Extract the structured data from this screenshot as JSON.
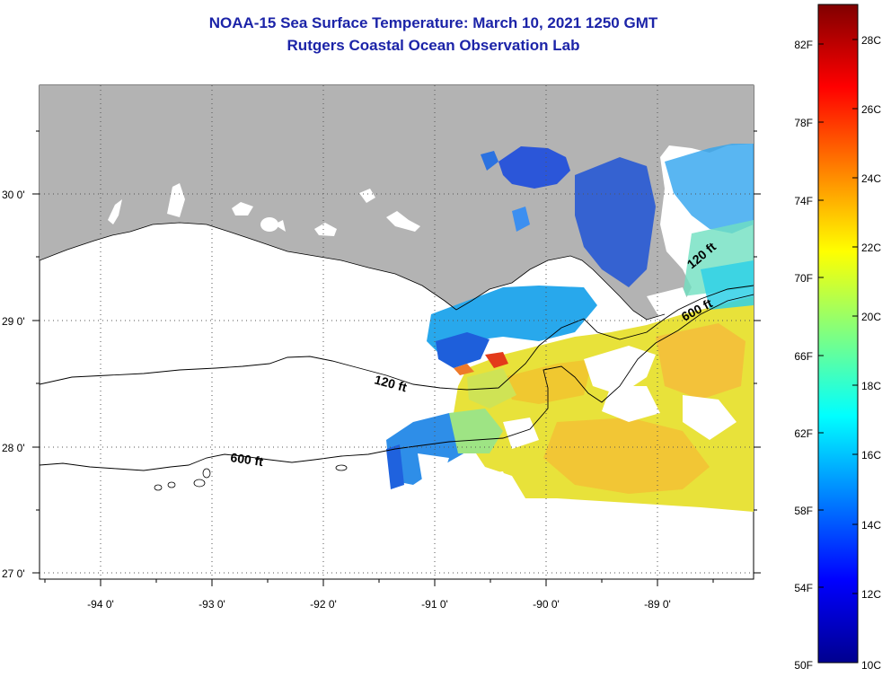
{
  "header": {
    "title": "NOAA-15 Sea Surface Temperature:  March 10, 2021 1250 GMT",
    "subtitle": "Rutgers Coastal Ocean Observation Lab"
  },
  "map": {
    "longitude_labels": [
      "-94 0'",
      "-93 0'",
      "-92 0'",
      "-91 0'",
      "-90 0'",
      "-89 0'"
    ],
    "latitude_labels": [
      "30 0'",
      "29 0'",
      "28 0'",
      "27 0'"
    ],
    "contour_labels": [
      "120 ft",
      "600 ft",
      "120 ft",
      "600 ft"
    ],
    "land_color": "#b3b3b3",
    "cloud_color": "#ffffff"
  },
  "colorbar": {
    "fahrenheit_labels": [
      "82F",
      "78F",
      "74F",
      "70F",
      "66F",
      "62F",
      "58F",
      "54F",
      "50F"
    ],
    "celsius_labels": [
      "28C",
      "26C",
      "24C",
      "22C",
      "20C",
      "18C",
      "16C",
      "14C",
      "12C",
      "10C"
    ],
    "gradient_colors": [
      "#00008f",
      "#0000ff",
      "#0080ff",
      "#00ffff",
      "#80ff80",
      "#ffff00",
      "#ff8000",
      "#ff0000",
      "#800000"
    ]
  }
}
